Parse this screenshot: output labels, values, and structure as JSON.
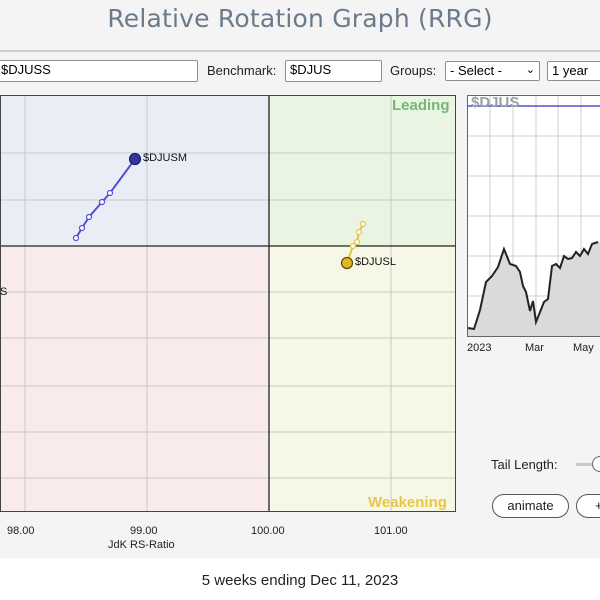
{
  "page": {
    "title": "Relative Rotation Graph (RRG)",
    "footer": "5 weeks ending Dec 11, 2023"
  },
  "toolbar": {
    "symbols_value": "$DJUSS",
    "benchmark_label": "Benchmark:",
    "benchmark_value": "$DJUS",
    "groups_label": "Groups:",
    "groups_value": "- Select -",
    "period_value": "1 year"
  },
  "rrg": {
    "x_axis_title": "JdK RS-Ratio",
    "x_ticks": [
      "98.00",
      "99.00",
      "100.00",
      "101.00"
    ],
    "quadrant_labels": {
      "leading": "Leading",
      "weakening": "Weakening"
    },
    "colors": {
      "leading": "#e9f4e3",
      "weakening": "#f7f7e6",
      "lagging": "#f9ebeb",
      "improving": "#ebedf6",
      "leading_text": "#74b874",
      "weakening_text": "#e6c847"
    },
    "series": [
      {
        "name": "$DJUSM",
        "color": "#4040c8",
        "head_color": "#2c2f8c"
      },
      {
        "name": "$DJUSL",
        "color": "#e0c030",
        "head_color": "#d9b11f"
      },
      {
        "name": "S",
        "color": "#999999",
        "head_color": "#999999"
      }
    ]
  },
  "mini_chart": {
    "title": "$DJUS",
    "x_ticks": [
      "2023",
      "Mar",
      "May"
    ]
  },
  "controls": {
    "tail_length_label": "Tail Length:",
    "animate_label": "animate",
    "plus_label": "+"
  }
}
